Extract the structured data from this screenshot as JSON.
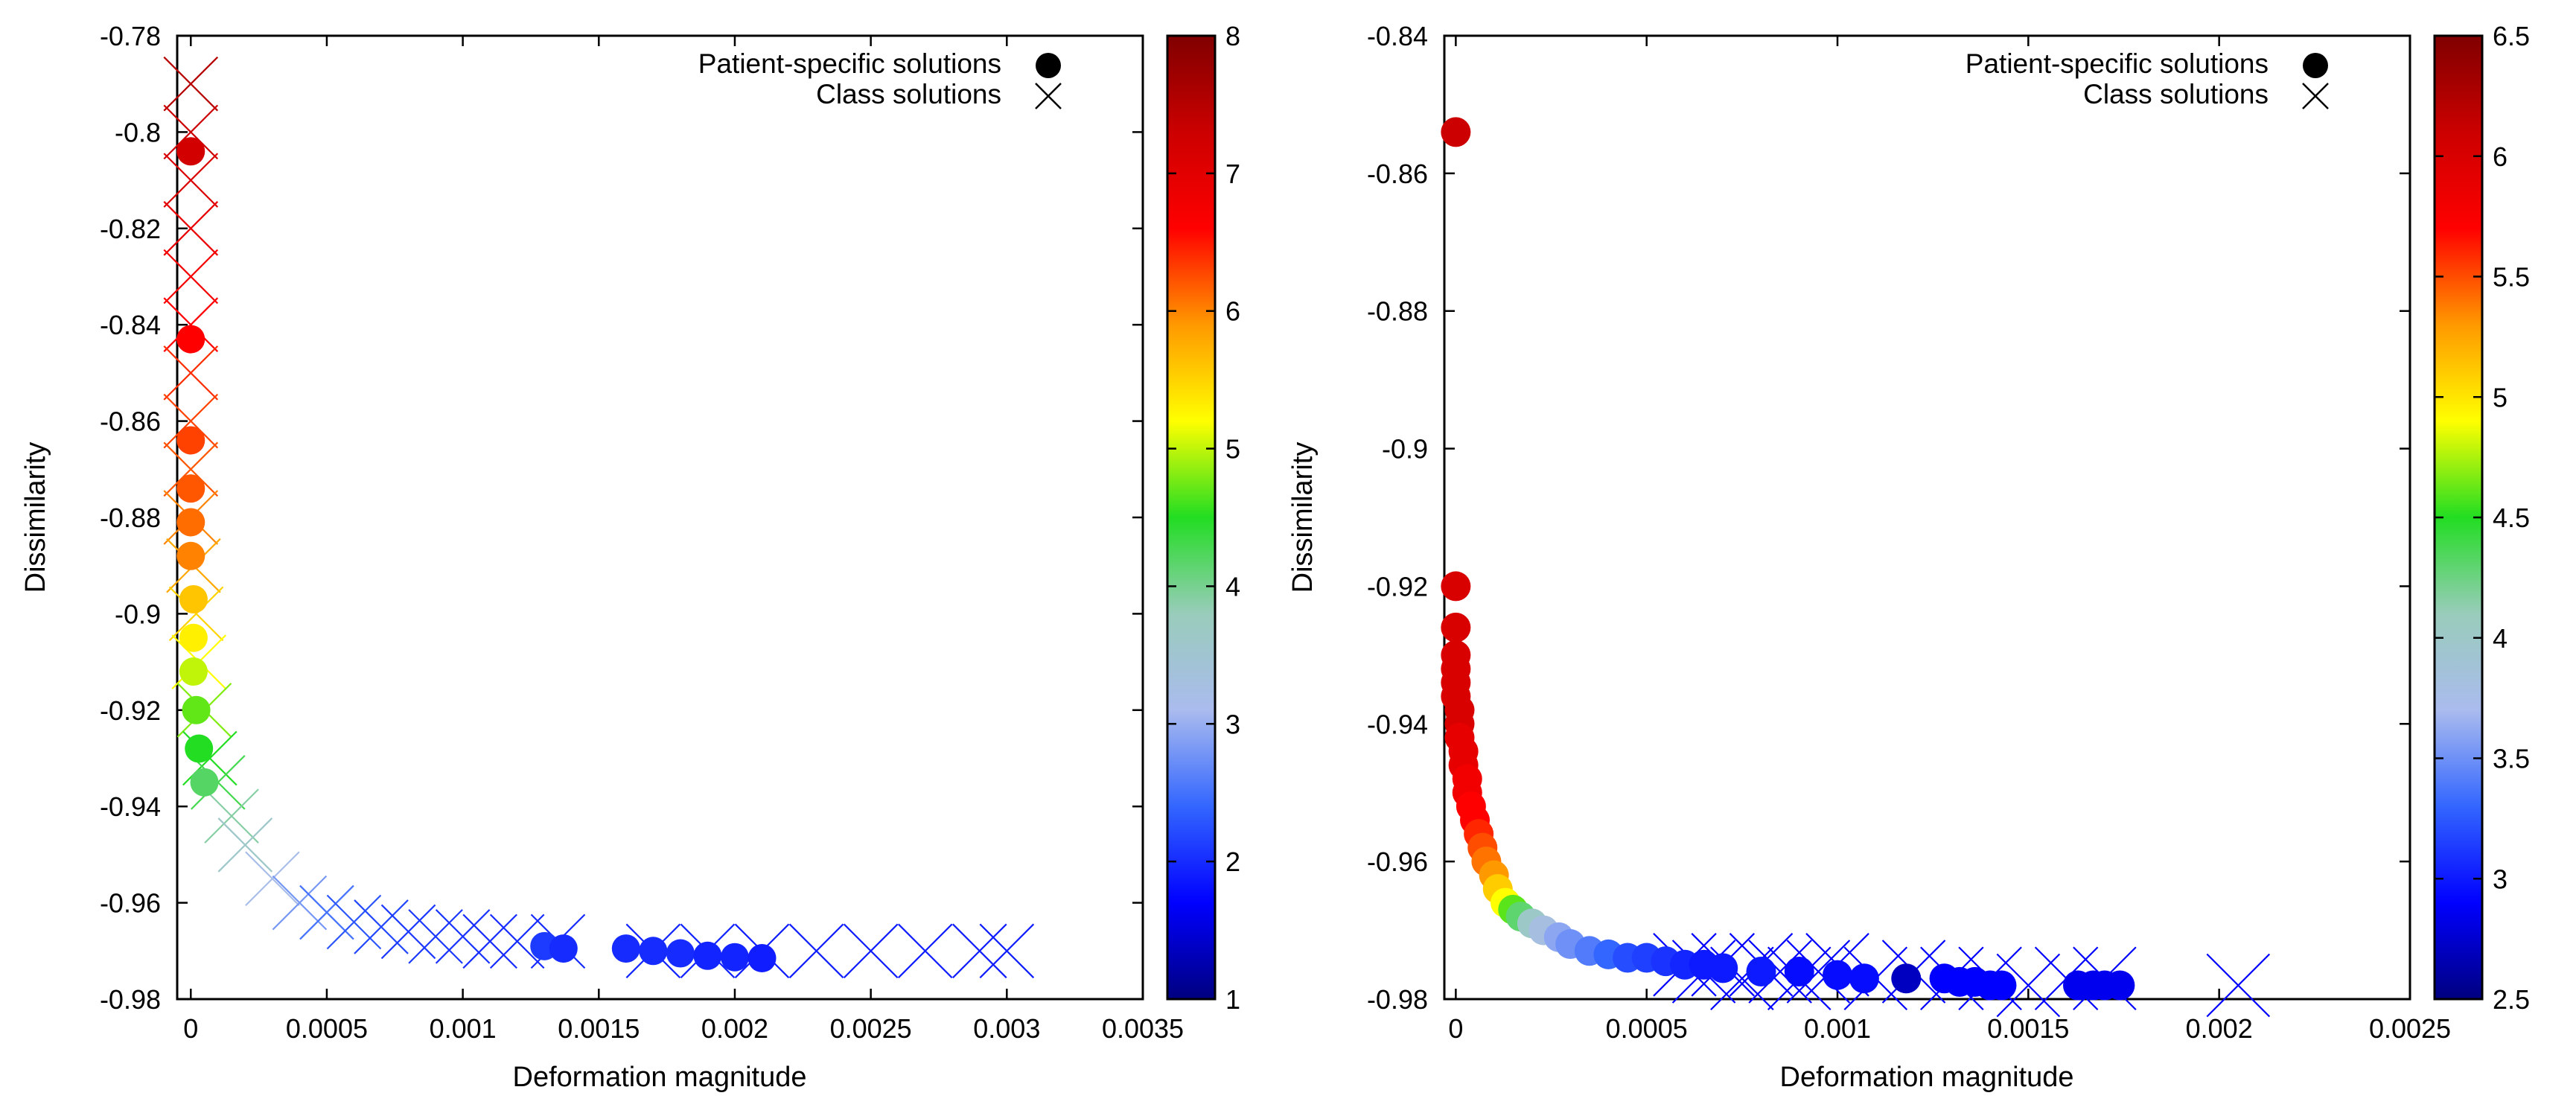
{
  "colormap": {
    "stops": [
      "#000080",
      "#0000ff",
      "#3366ff",
      "#aabbee",
      "#99ccbb",
      "#22dd22",
      "#ffff00",
      "#ff9900",
      "#ff0000",
      "#cc0000",
      "#800000"
    ],
    "marker_legend_color": "#000000",
    "class_color": "#0000ff"
  },
  "chart_data": [
    {
      "type": "scatter",
      "title": "",
      "xlabel": "Deformation magnitude",
      "ylabel": "Dissimilarity",
      "xlim": [
        -5e-05,
        0.0035
      ],
      "ylim": [
        -0.98,
        -0.78
      ],
      "xticks": [
        0,
        0.0005,
        0.001,
        0.0015,
        0.002,
        0.0025,
        0.003,
        0.0035
      ],
      "xtick_labels": [
        "0",
        "0.0005",
        "0.001",
        "0.0015",
        "0.002",
        "0.0025",
        "0.003",
        "0.0035"
      ],
      "yticks": [
        -0.98,
        -0.96,
        -0.94,
        -0.92,
        -0.9,
        -0.88,
        -0.86,
        -0.84,
        -0.82,
        -0.8,
        -0.78
      ],
      "ytick_labels": [
        "-0.98",
        "-0.96",
        "-0.94",
        "-0.92",
        "-0.9",
        "-0.88",
        "-0.86",
        "-0.84",
        "-0.82",
        "-0.8",
        "-0.78"
      ],
      "colorbar": {
        "range": [
          1,
          8
        ],
        "ticks": [
          1,
          2,
          3,
          4,
          5,
          6,
          7,
          8
        ],
        "tick_labels": [
          "1",
          "2",
          "3",
          "4",
          "5",
          "6",
          "7",
          "8"
        ]
      },
      "legend": {
        "position": "top-right",
        "entries": [
          {
            "label": "Patient-specific solutions",
            "marker": "circle"
          },
          {
            "label": "Class solutions",
            "marker": "cross"
          }
        ]
      },
      "series": [
        {
          "name": "Patient-specific solutions",
          "marker": "circle",
          "points": [
            [
              0.0,
              -0.804,
              7.2
            ],
            [
              0.0,
              -0.843,
              6.6
            ],
            [
              0.0,
              -0.864,
              6.3
            ],
            [
              0.0,
              -0.874,
              6.2
            ],
            [
              0.0,
              -0.881,
              6.1
            ],
            [
              0.0,
              -0.888,
              6.0
            ],
            [
              1e-05,
              -0.897,
              5.6
            ],
            [
              1e-05,
              -0.905,
              5.3
            ],
            [
              1e-05,
              -0.912,
              5.0
            ],
            [
              2e-05,
              -0.92,
              4.7
            ],
            [
              3e-05,
              -0.928,
              4.5
            ],
            [
              5e-05,
              -0.935,
              4.2
            ],
            [
              0.0013,
              -0.969,
              2.1
            ],
            [
              0.00137,
              -0.9695,
              2.0
            ],
            [
              0.0016,
              -0.9695,
              2.0
            ],
            [
              0.0017,
              -0.97,
              2.0
            ],
            [
              0.0018,
              -0.9705,
              2.0
            ],
            [
              0.0019,
              -0.971,
              1.95
            ],
            [
              0.002,
              -0.9713,
              1.95
            ],
            [
              0.0021,
              -0.9715,
              1.9
            ]
          ]
        },
        {
          "name": "Class solutions",
          "marker": "cross",
          "points": [
            [
              0.0,
              -0.79,
              7.5
            ],
            [
              0.0,
              -0.8,
              7.3
            ],
            [
              0.0,
              -0.81,
              7.1
            ],
            [
              0.0,
              -0.82,
              6.9
            ],
            [
              0.0,
              -0.83,
              6.7
            ],
            [
              0.0,
              -0.84,
              6.6
            ],
            [
              0.0,
              -0.85,
              6.4
            ],
            [
              0.0,
              -0.86,
              6.3
            ],
            [
              0.0,
              -0.87,
              6.2
            ],
            [
              0.0,
              -0.88,
              6.0
            ],
            [
              1e-05,
              -0.89,
              5.8
            ],
            [
              2e-05,
              -0.9,
              5.5
            ],
            [
              3e-05,
              -0.91,
              5.2
            ],
            [
              5e-05,
              -0.92,
              4.8
            ],
            [
              7e-05,
              -0.93,
              4.5
            ],
            [
              0.0001,
              -0.935,
              4.3
            ],
            [
              0.00015,
              -0.942,
              3.9
            ],
            [
              0.0002,
              -0.948,
              3.6
            ],
            [
              0.0003,
              -0.955,
              3.2
            ],
            [
              0.0004,
              -0.96,
              2.8
            ],
            [
              0.0005,
              -0.962,
              2.5
            ],
            [
              0.0006,
              -0.964,
              2.3
            ],
            [
              0.0007,
              -0.965,
              2.2
            ],
            [
              0.0008,
              -0.966,
              2.1
            ],
            [
              0.0009,
              -0.967,
              2.1
            ],
            [
              0.001,
              -0.967,
              2.05
            ],
            [
              0.0011,
              -0.968,
              2.0
            ],
            [
              0.0012,
              -0.968,
              2.0
            ],
            [
              0.00135,
              -0.968,
              2.0
            ],
            [
              0.0017,
              -0.97,
              1.95
            ],
            [
              0.0019,
              -0.97,
              1.95
            ],
            [
              0.0021,
              -0.97,
              1.9
            ],
            [
              0.0023,
              -0.97,
              1.9
            ],
            [
              0.0025,
              -0.97,
              1.9
            ],
            [
              0.0027,
              -0.97,
              1.9
            ],
            [
              0.0029,
              -0.97,
              1.9
            ],
            [
              0.003,
              -0.97,
              1.9
            ]
          ]
        }
      ]
    },
    {
      "type": "scatter",
      "title": "",
      "xlabel": "Deformation magnitude",
      "ylabel": "Dissimilarity",
      "xlim": [
        -3e-05,
        0.0025
      ],
      "ylim": [
        -0.98,
        -0.84
      ],
      "xticks": [
        0,
        0.0005,
        0.001,
        0.0015,
        0.002,
        0.0025
      ],
      "xtick_labels": [
        "0",
        "0.0005",
        "0.001",
        "0.0015",
        "0.002",
        "0.0025"
      ],
      "yticks": [
        -0.98,
        -0.96,
        -0.94,
        -0.92,
        -0.9,
        -0.88,
        -0.86,
        -0.84
      ],
      "ytick_labels": [
        "-0.98",
        "-0.96",
        "-0.94",
        "-0.92",
        "-0.9",
        "-0.88",
        "-0.86",
        "-0.84"
      ],
      "colorbar": {
        "range": [
          2.5,
          6.5
        ],
        "ticks": [
          2.5,
          3,
          3.5,
          4,
          4.5,
          5,
          5.5,
          6,
          6.5
        ],
        "tick_labels": [
          "2.5",
          "3",
          "3.5",
          "4",
          "4.5",
          "5",
          "5.5",
          "6",
          "6.5"
        ]
      },
      "legend": {
        "position": "top-right",
        "entries": [
          {
            "label": "Patient-specific solutions",
            "marker": "circle"
          },
          {
            "label": "Class solutions",
            "marker": "cross"
          }
        ]
      },
      "series": [
        {
          "name": "Patient-specific solutions",
          "marker": "circle",
          "points": [
            [
              0.0,
              -0.854,
              6.1
            ],
            [
              0.0,
              -0.92,
              6.0
            ],
            [
              0.0,
              -0.926,
              6.0
            ],
            [
              0.0,
              -0.93,
              6.0
            ],
            [
              0.0,
              -0.932,
              6.0
            ],
            [
              0.0,
              -0.934,
              6.0
            ],
            [
              0.0,
              -0.936,
              6.0
            ],
            [
              1e-05,
              -0.938,
              6.0
            ],
            [
              1e-05,
              -0.94,
              6.0
            ],
            [
              1e-05,
              -0.942,
              5.9
            ],
            [
              2e-05,
              -0.944,
              5.9
            ],
            [
              2e-05,
              -0.946,
              5.9
            ],
            [
              3e-05,
              -0.948,
              5.8
            ],
            [
              3e-05,
              -0.95,
              5.8
            ],
            [
              4e-05,
              -0.952,
              5.7
            ],
            [
              5e-05,
              -0.954,
              5.7
            ],
            [
              6e-05,
              -0.956,
              5.6
            ],
            [
              7e-05,
              -0.958,
              5.5
            ],
            [
              8e-05,
              -0.96,
              5.4
            ],
            [
              0.0001,
              -0.962,
              5.3
            ],
            [
              0.00011,
              -0.964,
              5.1
            ],
            [
              0.00013,
              -0.966,
              4.9
            ],
            [
              0.00015,
              -0.967,
              4.6
            ],
            [
              0.00017,
              -0.968,
              4.3
            ],
            [
              0.0002,
              -0.969,
              4.0
            ],
            [
              0.00023,
              -0.97,
              3.8
            ],
            [
              0.00027,
              -0.971,
              3.6
            ],
            [
              0.0003,
              -0.972,
              3.5
            ],
            [
              0.00035,
              -0.973,
              3.4
            ],
            [
              0.0004,
              -0.9735,
              3.3
            ],
            [
              0.00045,
              -0.974,
              3.2
            ],
            [
              0.0005,
              -0.974,
              3.15
            ],
            [
              0.00055,
              -0.9745,
              3.1
            ],
            [
              0.0006,
              -0.975,
              3.05
            ],
            [
              0.00065,
              -0.975,
              3.0
            ],
            [
              0.0007,
              -0.9755,
              3.0
            ],
            [
              0.0008,
              -0.976,
              3.0
            ],
            [
              0.0009,
              -0.976,
              2.95
            ],
            [
              0.001,
              -0.9765,
              2.95
            ],
            [
              0.00107,
              -0.977,
              2.95
            ],
            [
              0.00118,
              -0.977,
              2.7
            ],
            [
              0.00128,
              -0.977,
              2.9
            ],
            [
              0.00132,
              -0.9775,
              2.9
            ],
            [
              0.00136,
              -0.9775,
              2.9
            ],
            [
              0.0014,
              -0.978,
              2.9
            ],
            [
              0.00143,
              -0.978,
              2.9
            ],
            [
              0.00163,
              -0.978,
              2.85
            ],
            [
              0.00167,
              -0.978,
              2.85
            ],
            [
              0.0017,
              -0.978,
              2.85
            ],
            [
              0.00174,
              -0.978,
              2.85
            ]
          ]
        },
        {
          "name": "Class solutions",
          "marker": "cross",
          "points": [
            [
              0.0006,
              -0.975,
              2.9
            ],
            [
              0.00065,
              -0.976,
              2.9
            ],
            [
              0.0007,
              -0.975,
              2.9
            ],
            [
              0.00075,
              -0.977,
              2.9
            ],
            [
              0.0008,
              -0.975,
              2.9
            ],
            [
              0.00085,
              -0.976,
              2.9
            ],
            [
              0.0009,
              -0.977,
              2.9
            ],
            [
              0.00095,
              -0.976,
              2.9
            ],
            [
              0.001,
              -0.975,
              2.9
            ],
            [
              0.0011,
              -0.977,
              2.9
            ],
            [
              0.0012,
              -0.976,
              2.9
            ],
            [
              0.0013,
              -0.977,
              2.9
            ],
            [
              0.0014,
              -0.977,
              2.9
            ],
            [
              0.0015,
              -0.978,
              2.9
            ],
            [
              0.0016,
              -0.977,
              2.9
            ],
            [
              0.0017,
              -0.977,
              2.9
            ],
            [
              0.00205,
              -0.978,
              2.9
            ]
          ]
        }
      ]
    }
  ]
}
